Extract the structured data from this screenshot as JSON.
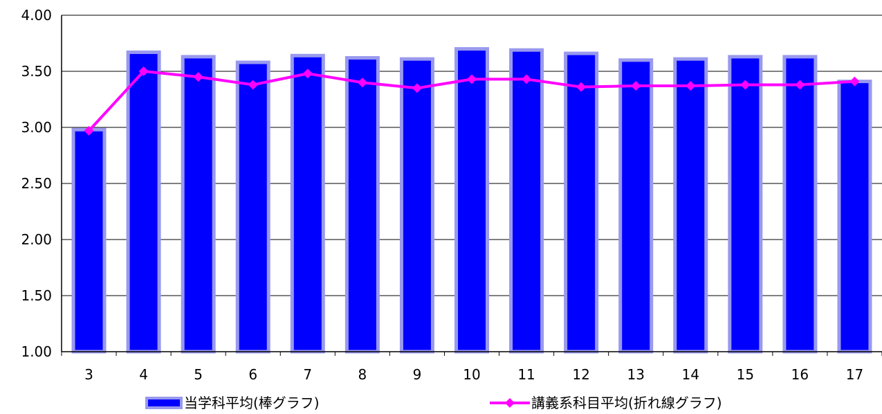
{
  "chart_data": {
    "type": "bar",
    "categories": [
      "3",
      "4",
      "5",
      "6",
      "7",
      "8",
      "9",
      "10",
      "11",
      "12",
      "13",
      "14",
      "15",
      "16",
      "17"
    ],
    "ylim": [
      1.0,
      4.0
    ],
    "yticks": [
      "1.00",
      "1.50",
      "2.00",
      "2.50",
      "3.00",
      "3.50",
      "4.00"
    ],
    "grid": true,
    "legend_position": "bottom",
    "series": [
      {
        "name": "当学科平均(棒グラフ)",
        "kind": "bar",
        "color": "#0000ff",
        "outline_color": "#9999ee",
        "values": [
          2.98,
          3.67,
          3.63,
          3.58,
          3.64,
          3.62,
          3.61,
          3.7,
          3.69,
          3.66,
          3.6,
          3.61,
          3.63,
          3.63,
          3.41
        ]
      },
      {
        "name": "講義系科目平均(折れ線グラフ)",
        "kind": "line",
        "color": "#ff00ff",
        "marker": "diamond",
        "values": [
          2.97,
          3.5,
          3.45,
          3.38,
          3.48,
          3.4,
          3.35,
          3.43,
          3.43,
          3.36,
          3.37,
          3.37,
          3.38,
          3.38,
          3.41
        ]
      }
    ]
  }
}
